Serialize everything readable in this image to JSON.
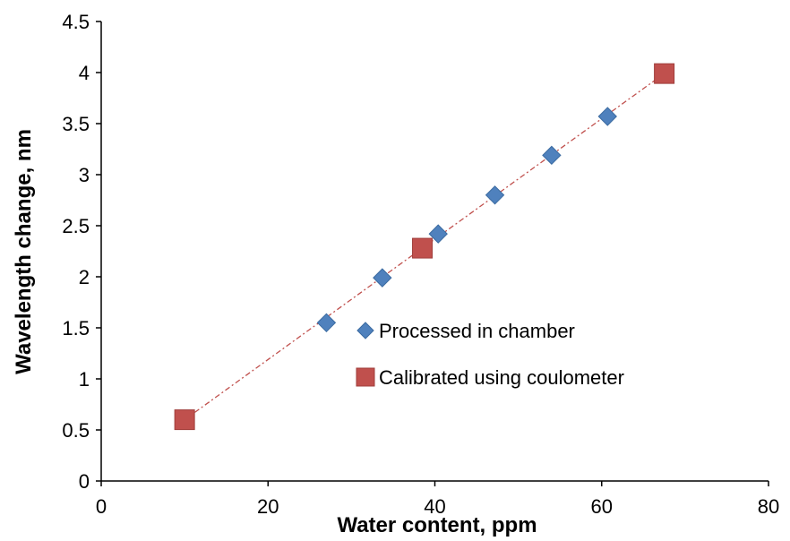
{
  "chart_data": {
    "type": "scatter",
    "title": "",
    "xlabel": "Water content, ppm",
    "ylabel": "Wavelength change, nm",
    "xlim": [
      0,
      80
    ],
    "ylim": [
      0,
      4.5
    ],
    "x_ticks": [
      0,
      20,
      40,
      60,
      80
    ],
    "y_ticks": [
      0,
      0.5,
      1,
      1.5,
      2,
      2.5,
      3,
      3.5,
      4,
      4.5
    ],
    "x_tick_labels": [
      "0",
      "20",
      "40",
      "60",
      "80"
    ],
    "y_tick_labels": [
      "0",
      "0.5",
      "1",
      "1.5",
      "2",
      "2.5",
      "3",
      "3.5",
      "4",
      "4.5"
    ],
    "grid": false,
    "legend_position": "center-right",
    "series": [
      {
        "name": "Processed in chamber",
        "marker": "diamond",
        "color": "#4F81BD",
        "x": [
          27.0,
          33.7,
          40.4,
          47.2,
          54.0,
          60.7
        ],
        "y": [
          1.55,
          1.99,
          2.42,
          2.8,
          3.19,
          3.57
        ]
      },
      {
        "name": "Calibrated using coulometer",
        "marker": "square",
        "color": "#C0504D",
        "x": [
          10.0,
          38.5,
          67.5
        ],
        "y": [
          0.6,
          2.28,
          3.99
        ]
      }
    ],
    "trendline": {
      "style": "dash-dot",
      "color": "#C0504D",
      "from": [
        10.0,
        0.6
      ],
      "to": [
        67.5,
        3.99
      ]
    }
  }
}
